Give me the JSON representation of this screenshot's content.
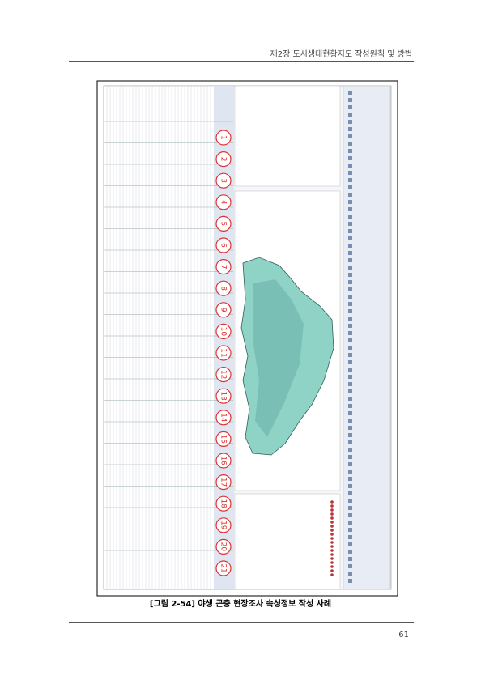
{
  "header": {
    "title": "제2장 도시생태현황지도 작성원칙 및 방법"
  },
  "figure": {
    "caption": "[그림 2-54] 야생 곤충 현장조사 속성정보 작성 사례",
    "markers": [
      "1",
      "2",
      "3",
      "4",
      "5",
      "6",
      "7",
      "8",
      "9",
      "10",
      "11",
      "12",
      "13",
      "14",
      "15",
      "16",
      "17",
      "18",
      "19",
      "20",
      "21"
    ]
  },
  "page_number": "61"
}
